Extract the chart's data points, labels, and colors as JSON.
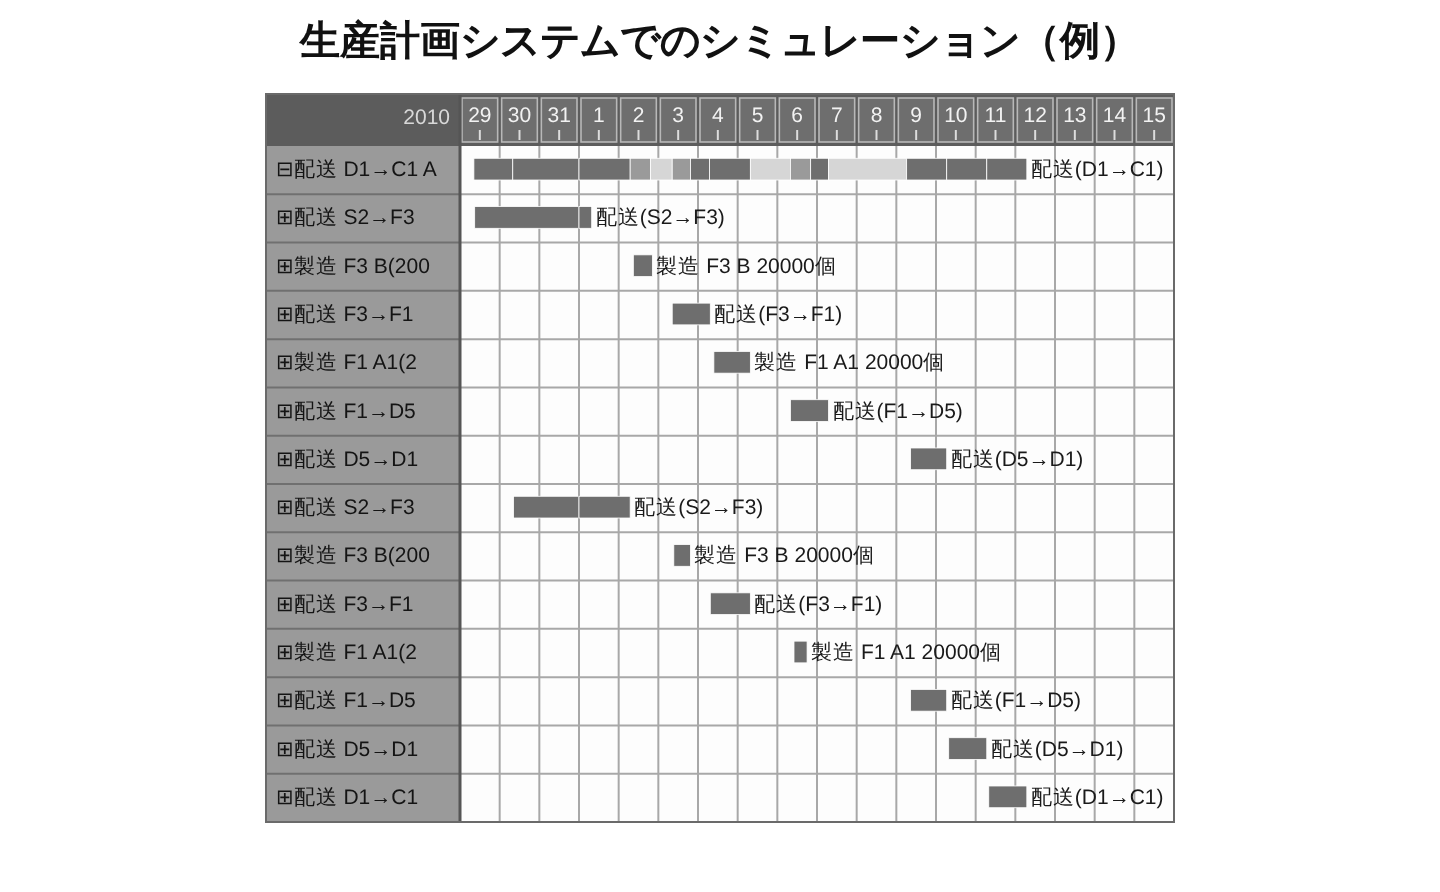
{
  "chart_data": [
    {
      "type": "bar",
      "orientation": "horizontal",
      "title": "生産計画システムでのシミュレーション（例）",
      "xlabel": "2010",
      "categories": [
        "⊟配送 D1→C1 A",
        "⊞配送 S2→F3",
        "⊞製造 F3 B(200",
        "⊞配送 F3→F1",
        "⊞製造 F1 A1(2",
        "⊞配送 F1→D5",
        "⊞配送 D5→D1",
        "⊞配送 S2→F3",
        "⊞製造 F3 B(200",
        "⊞配送 F3→F1",
        "⊞製造 F1 A1(2",
        "⊞配送 F1→D5",
        "⊞配送 D5→D1",
        "⊞配送 D1→C1"
      ],
      "series": [
        {
          "color": "#6e6e6e",
          "base": [
            28.85,
            28.87,
            null,
            null,
            null,
            null,
            null,
            29.85,
            null,
            null,
            null,
            null,
            null,
            null
          ],
          "values": [
            0.98,
            2.63,
            null,
            null,
            null,
            null,
            null,
            1.65,
            null,
            null,
            null,
            null,
            null,
            null
          ]
        },
        {
          "color": "#6e6e6e",
          "base": [
            29.83,
            null,
            null,
            null,
            null,
            null,
            null,
            null,
            null,
            null,
            null,
            null,
            null,
            null
          ],
          "values": [
            1.67,
            null,
            null,
            null,
            null,
            null,
            null,
            null,
            null,
            null,
            null,
            null,
            null,
            null
          ]
        }
      ],
      "xlim": [
        28.5,
        31.5
      ],
      "xticks": [
        29,
        30,
        31
      ],
      "grid": true
    },
    {
      "type": "bar",
      "orientation": "horizontal",
      "categories": [
        null,
        null,
        null,
        null,
        null,
        null,
        null,
        null,
        null,
        null,
        null,
        null,
        null,
        null
      ],
      "series": [
        {
          "color": "#6e6e6e",
          "base": [
            0.5,
            0.5,
            1.87,
            2.85,
            3.9,
            5.83,
            8.86,
            0.5,
            2.89,
            3.81,
            5.92,
            8.86,
            9.82,
            10.83
          ],
          "values": [
            1.29,
            0.32,
            0.48,
            0.96,
            0.92,
            0.96,
            0.91,
            1.29,
            0.42,
            1.01,
            0.33,
            0.91,
            0.96,
            0.96
          ],
          "value_labels": [
            null,
            "配送(S2→F3)",
            "製造 F3 B 20000個",
            "配送(F3→F1)",
            "製造 F1 A1 20000個",
            "配送(F1→D5)",
            "配送(D5→D1)",
            "配送(S2→F3)",
            "製造 F3 B 20000個",
            "配送(F3→F1)",
            "製造 F1 A1 20000個",
            "配送(F1→D5)",
            "配送(D5→D1)",
            "配送(D1→C1)"
          ]
        },
        {
          "color": "#9a9a9a",
          "base": [
            1.79,
            null,
            null,
            null,
            null,
            null,
            null,
            null,
            null,
            null,
            null,
            null,
            null,
            null
          ],
          "values": [
            0.51,
            null,
            null,
            null,
            null,
            null,
            null,
            null,
            null,
            null,
            null,
            null,
            null,
            null
          ]
        },
        {
          "color": "#d6d6d6",
          "base": [
            2.3,
            null,
            null,
            null,
            null,
            null,
            null,
            null,
            null,
            null,
            null,
            null,
            null,
            null
          ],
          "values": [
            0.55,
            null,
            null,
            null,
            null,
            null,
            null,
            null,
            null,
            null,
            null,
            null,
            null,
            null
          ]
        },
        {
          "color": "#9a9a9a",
          "base": [
            2.85,
            null,
            null,
            null,
            null,
            null,
            null,
            null,
            null,
            null,
            null,
            null,
            null,
            null
          ],
          "values": [
            0.46,
            null,
            null,
            null,
            null,
            null,
            null,
            null,
            null,
            null,
            null,
            null,
            null,
            null
          ]
        },
        {
          "color": "#6e6e6e",
          "base": [
            3.31,
            null,
            null,
            null,
            null,
            null,
            null,
            null,
            null,
            null,
            null,
            null,
            null,
            null
          ],
          "values": [
            0.48,
            null,
            null,
            null,
            null,
            null,
            null,
            null,
            null,
            null,
            null,
            null,
            null,
            null
          ]
        },
        {
          "color": "#6e6e6e",
          "base": [
            3.79,
            null,
            null,
            null,
            null,
            null,
            null,
            null,
            null,
            null,
            null,
            null,
            null,
            null
          ],
          "values": [
            1.03,
            null,
            null,
            null,
            null,
            null,
            null,
            null,
            null,
            null,
            null,
            null,
            null,
            null
          ]
        },
        {
          "color": "#d6d6d6",
          "base": [
            4.82,
            null,
            null,
            null,
            null,
            null,
            null,
            null,
            null,
            null,
            null,
            null,
            null,
            null
          ],
          "values": [
            1.01,
            null,
            null,
            null,
            null,
            null,
            null,
            null,
            null,
            null,
            null,
            null,
            null,
            null
          ]
        },
        {
          "color": "#9a9a9a",
          "base": [
            5.83,
            null,
            null,
            null,
            null,
            null,
            null,
            null,
            null,
            null,
            null,
            null,
            null,
            null
          ],
          "values": [
            0.51,
            null,
            null,
            null,
            null,
            null,
            null,
            null,
            null,
            null,
            null,
            null,
            null,
            null
          ]
        },
        {
          "color": "#6e6e6e",
          "base": [
            6.34,
            null,
            null,
            null,
            null,
            null,
            null,
            null,
            null,
            null,
            null,
            null,
            null,
            null
          ],
          "values": [
            0.45,
            null,
            null,
            null,
            null,
            null,
            null,
            null,
            null,
            null,
            null,
            null,
            null,
            null
          ]
        },
        {
          "color": "#d6d6d6",
          "base": [
            6.79,
            null,
            null,
            null,
            null,
            null,
            null,
            null,
            null,
            null,
            null,
            null,
            null,
            null
          ],
          "values": [
            1.97,
            null,
            null,
            null,
            null,
            null,
            null,
            null,
            null,
            null,
            null,
            null,
            null,
            null
          ]
        },
        {
          "color": "#6e6e6e",
          "base": [
            8.76,
            null,
            null,
            null,
            null,
            null,
            null,
            null,
            null,
            null,
            null,
            null,
            null,
            null
          ],
          "values": [
            1.01,
            null,
            null,
            null,
            null,
            null,
            null,
            null,
            null,
            null,
            null,
            null,
            null,
            null
          ]
        },
        {
          "color": "#6e6e6e",
          "base": [
            9.77,
            null,
            null,
            null,
            null,
            null,
            null,
            null,
            null,
            null,
            null,
            null,
            null,
            null
          ],
          "values": [
            1.01,
            null,
            null,
            null,
            null,
            null,
            null,
            null,
            null,
            null,
            null,
            null,
            null,
            null
          ]
        },
        {
          "color": "#6e6e6e",
          "base": [
            10.78,
            null,
            null,
            null,
            null,
            null,
            null,
            null,
            null,
            null,
            null,
            null,
            null,
            null
          ],
          "values": [
            1.01,
            null,
            null,
            null,
            null,
            null,
            null,
            null,
            null,
            null,
            null,
            null,
            null,
            null
          ],
          "value_labels": [
            "配送(D1→C1)",
            null,
            null,
            null,
            null,
            null,
            null,
            null,
            null,
            null,
            null,
            null,
            null,
            null
          ]
        }
      ],
      "xlim": [
        0.5,
        15.5
      ],
      "xticks": [
        1,
        2,
        3,
        4,
        5,
        6,
        7,
        8,
        9,
        10,
        11,
        12,
        13,
        14,
        15
      ],
      "tick_labels": "x",
      "grid": true
    }
  ]
}
